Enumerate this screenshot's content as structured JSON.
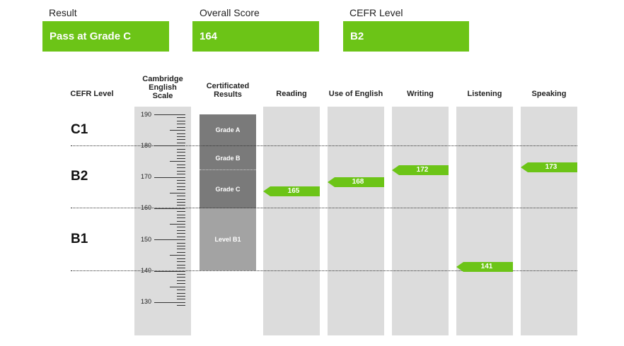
{
  "summary": {
    "result_label": "Result",
    "result_value": "Pass at Grade C",
    "score_label": "Overall Score",
    "score_value": "164",
    "cefr_label": "CEFR Level",
    "cefr_value": "B2"
  },
  "headers": {
    "cefr_level": "CEFR Level",
    "scale_line1": "Cambridge",
    "scale_line2": "English",
    "scale_line3": "Scale",
    "cert_line1": "Certificated",
    "cert_line2": "Results",
    "reading": "Reading",
    "use_of_english": "Use of English",
    "writing": "Writing",
    "listening": "Listening",
    "speaking": "Speaking"
  },
  "levels": [
    "C1",
    "B2",
    "B1"
  ],
  "scale_ticks": [
    "190",
    "180",
    "170",
    "160",
    "150",
    "140",
    "130"
  ],
  "grades": {
    "grade_a": "Grade A",
    "grade_b": "Grade B",
    "grade_c": "Grade C",
    "level_b1": "Level B1"
  },
  "scores": {
    "reading": "165",
    "use_of_english": "168",
    "writing": "172",
    "listening": "141",
    "speaking": "173"
  },
  "colors": {
    "accent_green": "#6cc417",
    "column_grey": "#dcdcdc",
    "grade_dark": "#7a7a7a",
    "grade_light": "#a3a3a3"
  }
}
